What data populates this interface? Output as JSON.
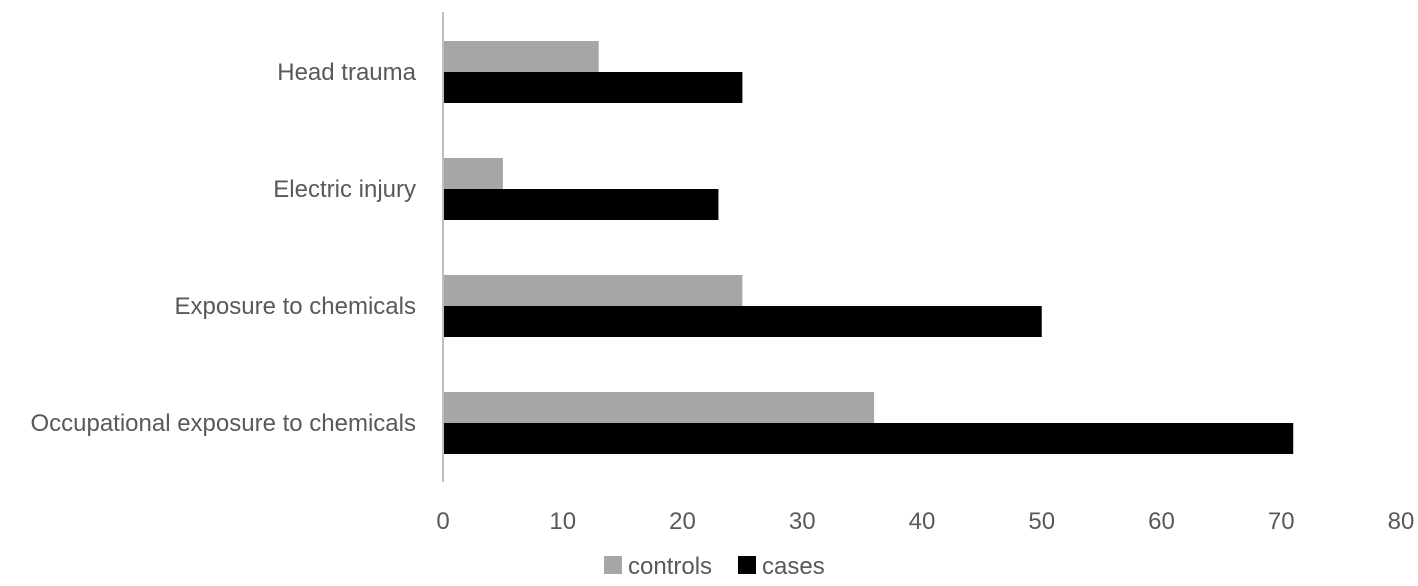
{
  "chart_data": {
    "type": "bar",
    "orientation": "horizontal",
    "categories": [
      "Head trauma",
      "Electric injury",
      "Exposure to chemicals",
      "Occupational exposure to chemicals"
    ],
    "series": [
      {
        "name": "controls",
        "color": "#a6a6a6",
        "values": [
          13,
          5,
          25,
          36
        ]
      },
      {
        "name": "cases",
        "color": "#000000",
        "values": [
          25,
          23,
          50,
          71
        ]
      }
    ],
    "xlim": [
      0,
      80
    ],
    "xticks": [
      "0",
      "10",
      "20",
      "30",
      "40",
      "50",
      "60",
      "70",
      "80"
    ],
    "grid": false,
    "legend_position": "bottom"
  }
}
